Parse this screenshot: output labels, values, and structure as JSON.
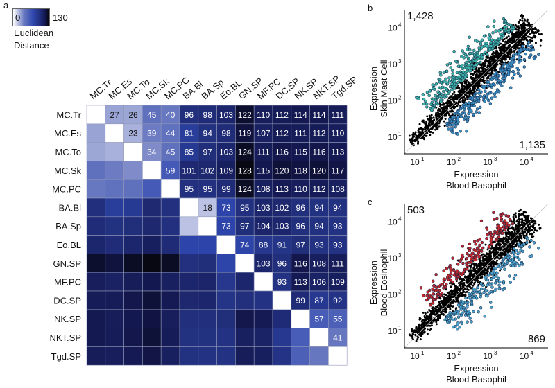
{
  "panels": {
    "a": "a",
    "b": "b",
    "c": "c"
  },
  "colorbar": {
    "min_label": "0",
    "max_label": "130",
    "title_line1": "Euclidean",
    "title_line2": "Distance",
    "min": 0,
    "max": 130
  },
  "chart_data": [
    {
      "type": "heatmap",
      "title": "Euclidean Distance",
      "labels": [
        "MC.Tr",
        "MC.Es",
        "MC.To",
        "MC.Sk",
        "MC.PC",
        "BA.Bl",
        "BA.Sp",
        "Eo.BL",
        "GN.SP",
        "MF.PC",
        "DC.SP",
        "NK.SP",
        "NKT.SP",
        "Tgd.SP"
      ],
      "upper_values": [
        [
          null,
          27,
          26,
          45,
          40,
          96,
          98,
          103,
          122,
          110,
          112,
          114,
          114,
          111
        ],
        [
          null,
          null,
          23,
          39,
          44,
          81,
          94,
          98,
          119,
          107,
          112,
          111,
          112,
          110
        ],
        [
          null,
          null,
          null,
          34,
          45,
          85,
          97,
          103,
          124,
          111,
          116,
          115,
          116,
          113
        ],
        [
          null,
          null,
          null,
          null,
          59,
          101,
          102,
          109,
          128,
          115,
          120,
          118,
          120,
          117
        ],
        [
          null,
          null,
          null,
          null,
          null,
          95,
          95,
          99,
          124,
          108,
          113,
          110,
          112,
          108
        ],
        [
          null,
          null,
          null,
          null,
          null,
          null,
          18,
          73,
          95,
          103,
          102,
          96,
          94,
          94
        ],
        [
          null,
          null,
          null,
          null,
          null,
          null,
          null,
          73,
          97,
          104,
          103,
          96,
          94,
          93
        ],
        [
          null,
          null,
          null,
          null,
          null,
          null,
          null,
          null,
          74,
          88,
          91,
          97,
          93,
          93
        ],
        [
          null,
          null,
          null,
          null,
          null,
          null,
          null,
          null,
          null,
          103,
          96,
          116,
          108,
          111
        ],
        [
          null,
          null,
          null,
          null,
          null,
          null,
          null,
          null,
          null,
          null,
          93,
          113,
          106,
          109
        ],
        [
          null,
          null,
          null,
          null,
          null,
          null,
          null,
          null,
          null,
          null,
          null,
          99,
          87,
          92
        ],
        [
          null,
          null,
          null,
          null,
          null,
          null,
          null,
          null,
          null,
          null,
          null,
          null,
          57,
          55
        ],
        [
          null,
          null,
          null,
          null,
          null,
          null,
          null,
          null,
          null,
          null,
          null,
          null,
          null,
          41
        ],
        [
          null,
          null,
          null,
          null,
          null,
          null,
          null,
          null,
          null,
          null,
          null,
          null,
          null,
          null
        ]
      ]
    },
    {
      "type": "scatter",
      "xscale": "log",
      "yscale": "log",
      "xlabel_line1": "Expression",
      "xlabel_line2": "Blood Basophil",
      "ylabel_line1": "Expression",
      "ylabel_line2": "Skin Mast Cell",
      "xticks": [
        "10",
        "10",
        "10",
        "10"
      ],
      "xtick_exps": [
        "1",
        "2",
        "3",
        "4"
      ],
      "up_count": "1,428",
      "down_count": "1,135",
      "up_color": "#3cb4a8",
      "down_color": "#3a8cc0"
    },
    {
      "type": "scatter",
      "xscale": "log",
      "yscale": "log",
      "xlabel_line1": "Expression",
      "xlabel_line2": "Blood Basophil",
      "ylabel_line1": "Expression",
      "ylabel_line2": "Blood Eosinophil",
      "xticks": [
        "10",
        "10",
        "10",
        "10"
      ],
      "xtick_exps": [
        "1",
        "2",
        "3",
        "4"
      ],
      "up_count": "503",
      "down_count": "869",
      "up_color": "#c0282c",
      "down_color": "#4aa0c8"
    }
  ]
}
